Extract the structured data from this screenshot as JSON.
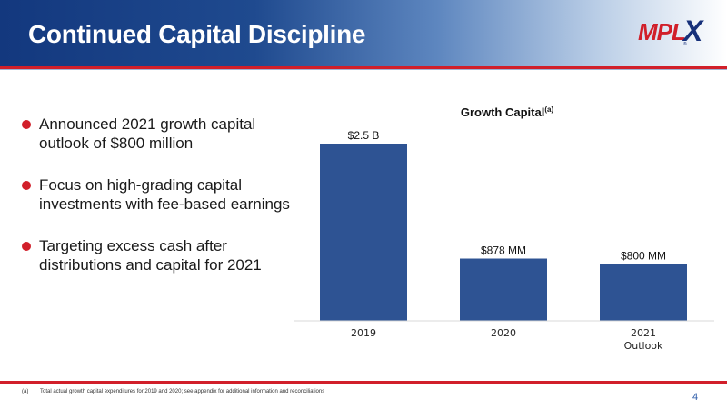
{
  "header": {
    "title": "Continued Capital Discipline",
    "logo": {
      "main": "MPL",
      "x": "X",
      "tm": "®"
    }
  },
  "bullets": [
    "Announced 2021 growth capital outlook of $800 million",
    "Focus on high-grading capital investments with fee-based earnings",
    "Targeting excess cash after distributions and capital for 2021"
  ],
  "colors": {
    "bar": "#2e5393",
    "accent_red": "#d11f2a",
    "header_blue": "#13387e"
  },
  "chart_data": {
    "type": "bar",
    "title": "Growth Capital",
    "title_superscript": "(a)",
    "categories": [
      "2019",
      "2020",
      "2021"
    ],
    "category_sublabels": [
      "",
      "",
      "Outlook"
    ],
    "values": [
      2500,
      878,
      800
    ],
    "value_unit": "$MM",
    "data_labels": [
      "$2.5 B",
      "$878 MM",
      "$800 MM"
    ],
    "ylim": [
      0,
      2500
    ],
    "grid": false,
    "legend": "none"
  },
  "footer": {
    "footnote_marker": "(a)",
    "footnote_text": "Total actual growth capital expenditures for 2019 and 2020; see appendix for additional information and reconciliations",
    "page_number": "4"
  }
}
